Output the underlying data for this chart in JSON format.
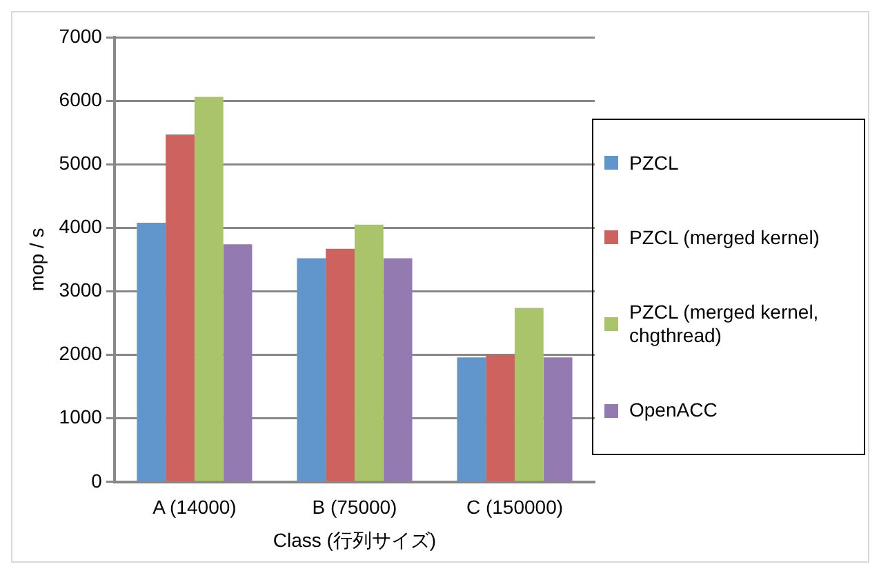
{
  "chart_data": {
    "type": "bar",
    "xlabel": "Class (行列サイズ)",
    "ylabel": "mop / s",
    "categories": [
      "A (14000)",
      "B (75000)",
      "C (150000)"
    ],
    "series": [
      {
        "name": "PZCL",
        "color": "#6096cb",
        "values": [
          4080,
          3520,
          1960
        ]
      },
      {
        "name": "PZCL (merged kernel)",
        "color": "#cd625e",
        "values": [
          5470,
          3670,
          2000
        ]
      },
      {
        "name": "PZCL (merged kernel, chgthread)",
        "color": "#aac46c",
        "values": [
          6060,
          4050,
          2740
        ]
      },
      {
        "name": "OpenACC",
        "color": "#937bb2",
        "values": [
          3740,
          3520,
          1960
        ]
      }
    ],
    "ylim": [
      0,
      7000
    ],
    "yticks": [
      0,
      1000,
      2000,
      3000,
      4000,
      5000,
      6000,
      7000
    ],
    "grid": "y",
    "legend": "right"
  }
}
